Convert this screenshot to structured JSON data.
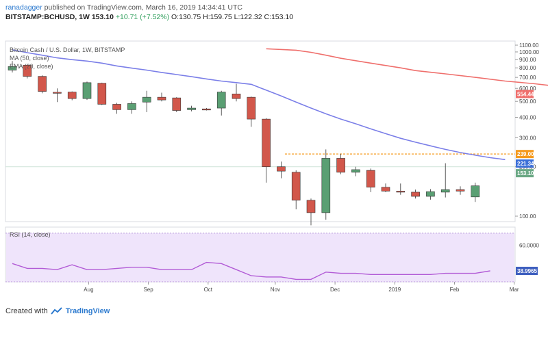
{
  "header": {
    "author": "ranadagger",
    "published": "published on TradingView.com, March 16, 2019 14:34:41 UTC",
    "symbol": "BITSTAMP:BCHUSD, 1W",
    "last": "153.10",
    "change": "+10.71 (+7.52%)",
    "ohlc": "O:130.75 H:159.75 L:122.32 C:153.10"
  },
  "footer": {
    "created_with": "Created with",
    "brand": "TradingView"
  },
  "colors": {
    "up": "#5a9f73",
    "down": "#d2574b",
    "ma50": "#ef6f6c",
    "ema20": "#7b7fe8",
    "rsi": "#b25bd6",
    "rsi_bg": "#efe4fb",
    "orange": "#f59a1e",
    "blue_badge": "#3b6fd8",
    "green_badge": "#6aa884"
  },
  "chart_data": {
    "type": "candlestick",
    "legend": [
      "Bitcoin Cash / U.S. Dollar, 1W, BITSTAMP",
      "MA (50, close)",
      "EMA (20, close)"
    ],
    "y_ticks": [
      1100,
      1000,
      900,
      800,
      700,
      600,
      500,
      400,
      300,
      200,
      100
    ],
    "y_tick_labels": [
      "1100.00",
      "1000.00",
      "900.00",
      "800.00",
      "700.00",
      "600.00",
      "500.00",
      "400.00",
      "300.00",
      "200.00",
      "100.00"
    ],
    "ylim": [
      100,
      1100
    ],
    "x_labels": [
      "Aug",
      "Sep",
      "Oct",
      "Nov",
      "Dec",
      "2019",
      "Feb",
      "Mar"
    ],
    "candles": [
      {
        "o": 775,
        "h": 880,
        "l": 750,
        "c": 815
      },
      {
        "o": 830,
        "h": 840,
        "l": 690,
        "c": 710
      },
      {
        "o": 710,
        "h": 720,
        "l": 560,
        "c": 575
      },
      {
        "o": 568,
        "h": 600,
        "l": 495,
        "c": 565
      },
      {
        "o": 570,
        "h": 575,
        "l": 508,
        "c": 520
      },
      {
        "o": 520,
        "h": 660,
        "l": 510,
        "c": 650
      },
      {
        "o": 645,
        "h": 650,
        "l": 475,
        "c": 480
      },
      {
        "o": 480,
        "h": 490,
        "l": 420,
        "c": 445
      },
      {
        "o": 445,
        "h": 500,
        "l": 420,
        "c": 485
      },
      {
        "o": 495,
        "h": 580,
        "l": 430,
        "c": 530
      },
      {
        "o": 530,
        "h": 565,
        "l": 500,
        "c": 510
      },
      {
        "o": 525,
        "h": 530,
        "l": 430,
        "c": 440
      },
      {
        "o": 445,
        "h": 470,
        "l": 435,
        "c": 455
      },
      {
        "o": 450,
        "h": 455,
        "l": 440,
        "c": 443
      },
      {
        "o": 455,
        "h": 580,
        "l": 410,
        "c": 570
      },
      {
        "o": 555,
        "h": 640,
        "l": 500,
        "c": 520
      },
      {
        "o": 530,
        "h": 535,
        "l": 350,
        "c": 390
      },
      {
        "o": 390,
        "h": 395,
        "l": 160,
        "c": 200
      },
      {
        "o": 200,
        "h": 215,
        "l": 170,
        "c": 188
      },
      {
        "o": 185,
        "h": 190,
        "l": 110,
        "c": 125
      },
      {
        "o": 125,
        "h": 128,
        "l": 88,
        "c": 105
      },
      {
        "o": 105,
        "h": 255,
        "l": 95,
        "c": 225
      },
      {
        "o": 225,
        "h": 240,
        "l": 180,
        "c": 185
      },
      {
        "o": 185,
        "h": 200,
        "l": 175,
        "c": 192
      },
      {
        "o": 190,
        "h": 195,
        "l": 140,
        "c": 150
      },
      {
        "o": 150,
        "h": 158,
        "l": 140,
        "c": 142
      },
      {
        "o": 142,
        "h": 158,
        "l": 135,
        "c": 140
      },
      {
        "o": 140,
        "h": 145,
        "l": 128,
        "c": 132
      },
      {
        "o": 132,
        "h": 146,
        "l": 126,
        "c": 141
      },
      {
        "o": 140,
        "h": 210,
        "l": 130,
        "c": 145
      },
      {
        "o": 145,
        "h": 152,
        "l": 135,
        "c": 142
      },
      {
        "o": 131,
        "h": 160,
        "l": 122,
        "c": 153
      }
    ],
    "ma50": [
      [
        17,
        1045
      ],
      [
        19,
        1025
      ],
      [
        20,
        995
      ],
      [
        21,
        955
      ],
      [
        22,
        915
      ],
      [
        24,
        855
      ],
      [
        26,
        800
      ],
      [
        27,
        770
      ],
      [
        29,
        735
      ],
      [
        31,
        700
      ],
      [
        33,
        665
      ],
      [
        35,
        640
      ],
      [
        37,
        610
      ],
      [
        39,
        585
      ],
      [
        41,
        565
      ],
      [
        42,
        554
      ]
    ],
    "ema20": [
      [
        0,
        1030
      ],
      [
        1,
        990
      ],
      [
        2,
        955
      ],
      [
        3,
        920
      ],
      [
        4,
        898
      ],
      [
        5,
        880
      ],
      [
        6,
        855
      ],
      [
        7,
        822
      ],
      [
        8,
        797
      ],
      [
        9,
        775
      ],
      [
        10,
        750
      ],
      [
        11,
        728
      ],
      [
        12,
        707
      ],
      [
        13,
        685
      ],
      [
        14,
        665
      ],
      [
        15,
        650
      ],
      [
        16,
        635
      ],
      [
        17,
        585
      ],
      [
        18,
        540
      ],
      [
        19,
        495
      ],
      [
        20,
        455
      ],
      [
        21,
        420
      ],
      [
        22,
        390
      ],
      [
        23,
        365
      ],
      [
        24,
        340
      ],
      [
        25,
        318
      ],
      [
        26,
        298
      ],
      [
        27,
        282
      ],
      [
        28,
        268
      ],
      [
        29,
        255
      ],
      [
        30,
        244
      ],
      [
        31,
        235
      ],
      [
        32,
        227
      ],
      [
        33,
        221
      ]
    ],
    "resistance": 239,
    "price_labels": {
      "ma50": "554.44",
      "resistance": "239.00",
      "ema20": "221.34",
      "last": "153.10"
    },
    "rsi": {
      "legend": "RSI (14, close)",
      "level_label": "60.0000",
      "last_label": "38.9965",
      "ylim": [
        30,
        75
      ],
      "values": [
        45,
        41,
        41,
        40,
        44,
        40,
        40,
        41,
        42,
        42,
        40,
        40,
        40,
        46,
        45,
        40,
        35,
        34,
        34,
        32,
        32,
        38,
        37,
        37,
        36,
        36,
        36,
        36,
        36,
        37,
        37,
        37,
        39
      ]
    }
  }
}
